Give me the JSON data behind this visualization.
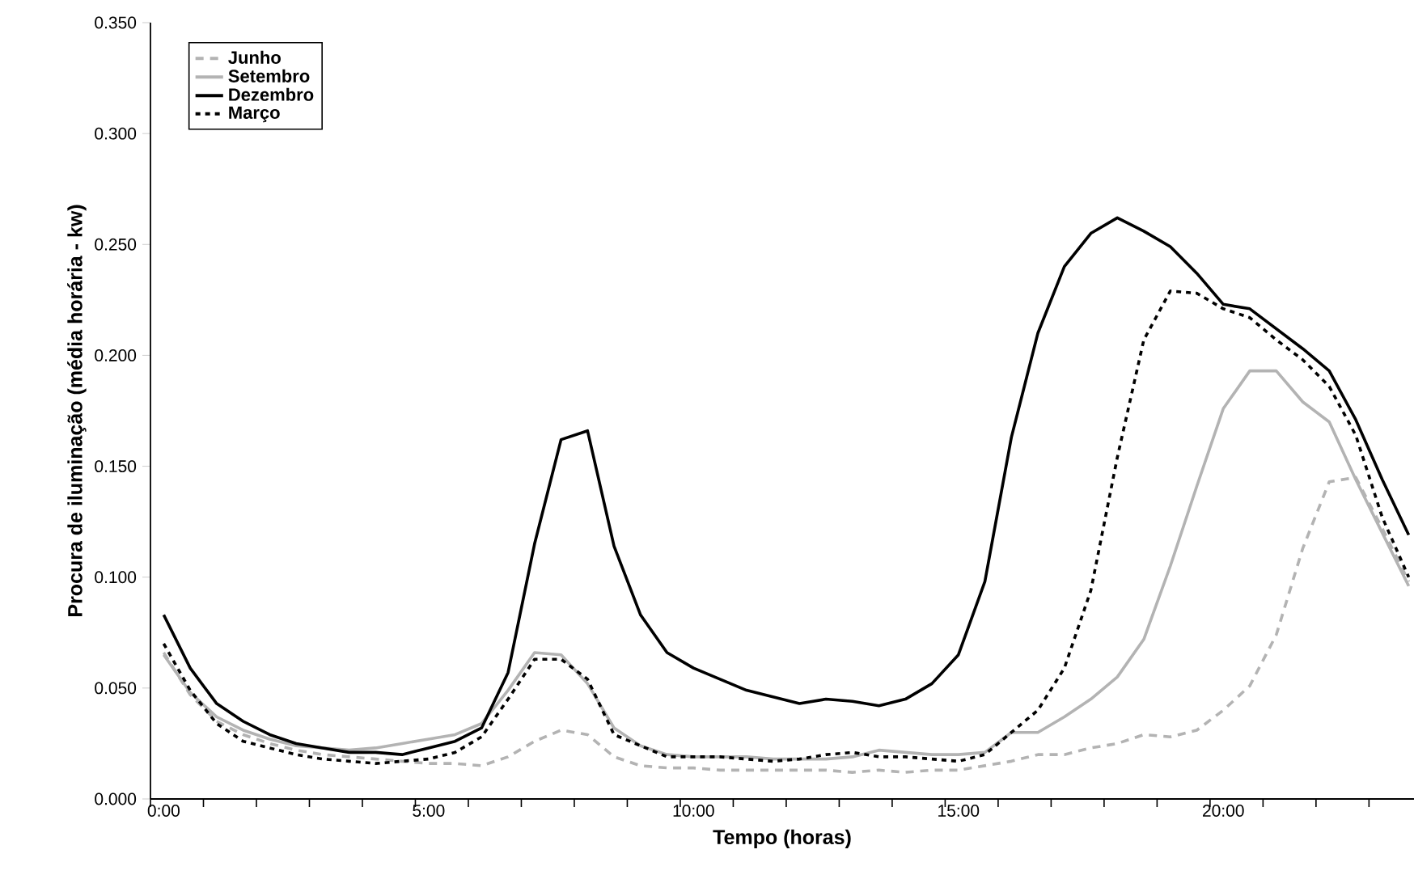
{
  "chart_data": {
    "type": "line",
    "xlabel": "Tempo (horas)",
    "ylabel": "Procura de iluminação (média horária - kw)",
    "x": [
      0,
      0.5,
      1,
      1.5,
      2,
      2.5,
      3,
      3.5,
      4,
      4.5,
      5,
      5.5,
      6,
      6.5,
      7,
      7.5,
      8,
      8.5,
      9,
      9.5,
      10,
      10.5,
      11,
      11.5,
      12,
      12.5,
      13,
      13.5,
      14,
      14.5,
      15,
      15.5,
      16,
      16.5,
      17,
      17.5,
      18,
      18.5,
      19,
      19.5,
      20,
      20.5,
      21,
      21.5,
      22,
      22.5,
      23,
      23.5
    ],
    "xlim": [
      -0.25,
      23.6
    ],
    "xticks": [
      {
        "value": 0,
        "label": "0:00"
      },
      {
        "value": 5,
        "label": "5:00"
      },
      {
        "value": 10,
        "label": "10:00"
      },
      {
        "value": 15,
        "label": "15:00"
      },
      {
        "value": 20,
        "label": "20:00"
      },
      {
        "value": -0.25,
        "label": null
      },
      {
        "value": 0.75,
        "label": null
      },
      {
        "value": 1.75,
        "label": null
      },
      {
        "value": 2.75,
        "label": null
      },
      {
        "value": 3.75,
        "label": null
      },
      {
        "value": 4.75,
        "label": null
      },
      {
        "value": 5.75,
        "label": null
      },
      {
        "value": 6.75,
        "label": null
      },
      {
        "value": 7.75,
        "label": null
      },
      {
        "value": 8.75,
        "label": null
      },
      {
        "value": 9.75,
        "label": null
      },
      {
        "value": 10.75,
        "label": null
      },
      {
        "value": 11.75,
        "label": null
      },
      {
        "value": 12.75,
        "label": null
      },
      {
        "value": 13.75,
        "label": null
      },
      {
        "value": 14.75,
        "label": null
      },
      {
        "value": 15.75,
        "label": null
      },
      {
        "value": 16.75,
        "label": null
      },
      {
        "value": 17.75,
        "label": null
      },
      {
        "value": 18.75,
        "label": null
      },
      {
        "value": 19.75,
        "label": null
      },
      {
        "value": 20.75,
        "label": null
      },
      {
        "value": 21.75,
        "label": null
      },
      {
        "value": 22.75,
        "label": null
      }
    ],
    "ylim": [
      0,
      0.35
    ],
    "yticks": [
      {
        "value": 0,
        "label": "0.000"
      },
      {
        "value": 0.05,
        "label": "0.050"
      },
      {
        "value": 0.1,
        "label": "0.100"
      },
      {
        "value": 0.15,
        "label": "0.150"
      },
      {
        "value": 0.2,
        "label": "0.200"
      },
      {
        "value": 0.25,
        "label": "0.250"
      },
      {
        "value": 0.3,
        "label": "0.300"
      },
      {
        "value": 0.35,
        "label": "0.350"
      }
    ],
    "grid": false,
    "legend": "top left",
    "marker": "none",
    "series": [
      {
        "name": "Junho",
        "color": "#b3b3b3",
        "line_style": "dashed",
        "values": [
          0.066,
          0.047,
          0.035,
          0.029,
          0.025,
          0.022,
          0.02,
          0.019,
          0.018,
          0.017,
          0.016,
          0.016,
          0.015,
          0.019,
          0.026,
          0.031,
          0.029,
          0.019,
          0.015,
          0.014,
          0.014,
          0.013,
          0.013,
          0.013,
          0.013,
          0.013,
          0.012,
          0.013,
          0.012,
          0.013,
          0.013,
          0.015,
          0.017,
          0.02,
          0.02,
          0.023,
          0.025,
          0.029,
          0.028,
          0.031,
          0.04,
          0.051,
          0.074,
          0.113,
          0.143,
          0.145,
          0.122,
          0.098
        ]
      },
      {
        "name": "Setembro",
        "color": "#b3b3b3",
        "line_style": "solid",
        "values": [
          0.065,
          0.048,
          0.037,
          0.031,
          0.027,
          0.024,
          0.023,
          0.022,
          0.023,
          0.025,
          0.027,
          0.029,
          0.034,
          0.049,
          0.066,
          0.065,
          0.052,
          0.032,
          0.024,
          0.02,
          0.019,
          0.019,
          0.019,
          0.018,
          0.018,
          0.018,
          0.019,
          0.022,
          0.021,
          0.02,
          0.02,
          0.021,
          0.03,
          0.03,
          0.037,
          0.045,
          0.055,
          0.072,
          0.105,
          0.141,
          0.176,
          0.193,
          0.193,
          0.179,
          0.17,
          0.144,
          0.12,
          0.096
        ]
      },
      {
        "name": "Dezembro",
        "color": "#000000",
        "line_style": "solid",
        "values": [
          0.083,
          0.059,
          0.043,
          0.035,
          0.029,
          0.025,
          0.023,
          0.021,
          0.021,
          0.02,
          0.023,
          0.026,
          0.032,
          0.057,
          0.115,
          0.162,
          0.166,
          0.114,
          0.083,
          0.066,
          0.059,
          0.054,
          0.049,
          0.046,
          0.043,
          0.045,
          0.044,
          0.042,
          0.045,
          0.052,
          0.065,
          0.098,
          0.163,
          0.21,
          0.24,
          0.255,
          0.262,
          0.256,
          0.249,
          0.237,
          0.223,
          0.221,
          0.212,
          0.203,
          0.193,
          0.171,
          0.144,
          0.119
        ]
      },
      {
        "name": "Março",
        "color": "#000000",
        "line_style": "dotted",
        "values": [
          0.07,
          0.049,
          0.034,
          0.026,
          0.023,
          0.02,
          0.018,
          0.017,
          0.016,
          0.017,
          0.018,
          0.021,
          0.028,
          0.045,
          0.063,
          0.063,
          0.054,
          0.029,
          0.024,
          0.019,
          0.019,
          0.019,
          0.018,
          0.017,
          0.018,
          0.02,
          0.021,
          0.019,
          0.019,
          0.018,
          0.017,
          0.02,
          0.03,
          0.04,
          0.059,
          0.094,
          0.154,
          0.207,
          0.229,
          0.228,
          0.221,
          0.217,
          0.207,
          0.198,
          0.186,
          0.164,
          0.127,
          0.1
        ]
      }
    ]
  }
}
